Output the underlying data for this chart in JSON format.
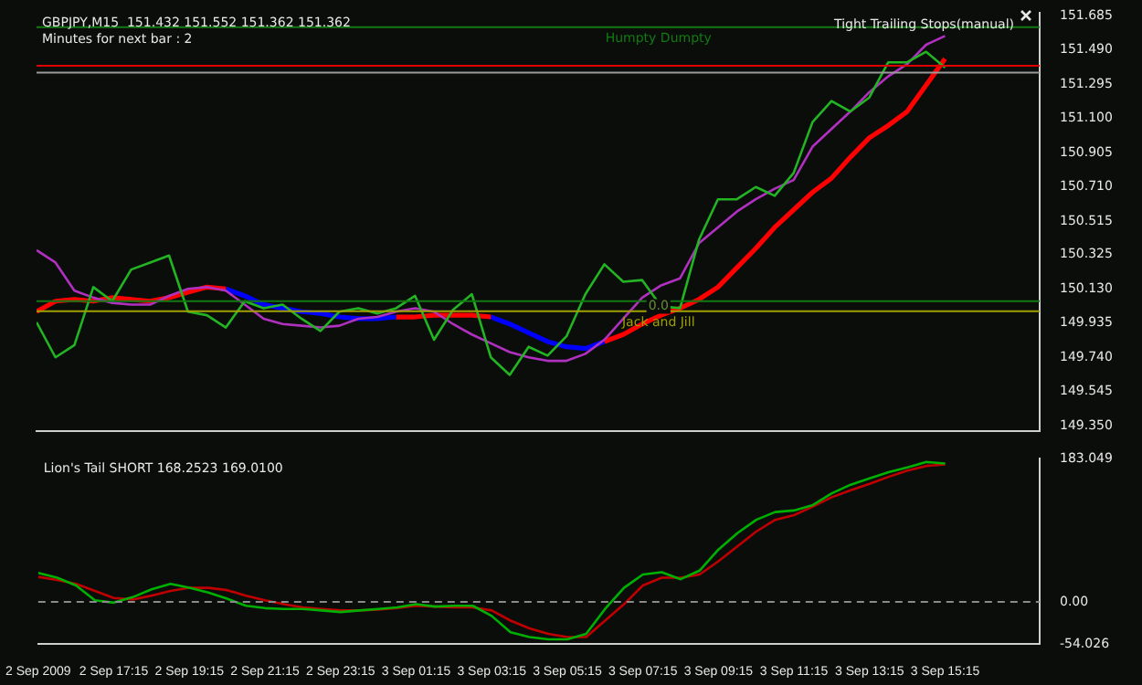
{
  "chart_data": [
    {
      "type": "line",
      "title": "GBPJPY,M15  151.432 151.552 151.362 151.362",
      "annotations": [
        "Minutes for next bar : 2",
        "Tight Trailing Stops(manual)",
        {
          "text": "0.0",
          "y": 150.03
        }
      ],
      "categories": [
        null,
        null,
        null,
        null,
        null,
        null,
        null,
        null,
        null,
        null,
        null,
        null,
        null,
        null,
        null,
        null,
        null,
        null,
        null,
        null,
        null,
        null,
        null,
        null,
        null,
        null,
        null,
        null,
        null,
        null,
        null,
        null,
        null,
        null,
        null,
        null,
        null,
        null,
        null,
        null,
        null,
        null,
        null,
        null,
        null,
        null,
        null,
        null,
        null
      ],
      "series": [
        {
          "color": "#22b422",
          "values": [
            149.94,
            149.74,
            149.81,
            150.14,
            150.06,
            150.24,
            150.28,
            150.32,
            150.0,
            149.98,
            149.91,
            150.06,
            150.02,
            150.04,
            149.96,
            149.89,
            150.0,
            150.02,
            149.99,
            150.02,
            150.09,
            149.84,
            150.01,
            150.1,
            149.74,
            149.64,
            149.8,
            149.75,
            149.86,
            150.1,
            150.27,
            150.17,
            150.18,
            150.03,
            150.02,
            150.41,
            150.64,
            150.64,
            150.71,
            150.66,
            150.79,
            151.08,
            151.2,
            151.14,
            151.22,
            151.42,
            151.42,
            151.48,
            151.39
          ]
        },
        {
          "color": "#b030c0",
          "values": [
            150.35,
            150.28,
            150.12,
            150.08,
            150.05,
            150.04,
            150.04,
            150.09,
            150.13,
            150.14,
            150.12,
            150.04,
            149.96,
            149.93,
            149.92,
            149.91,
            149.92,
            149.96,
            149.97,
            150.0,
            150.02,
            150.0,
            149.93,
            149.87,
            149.82,
            149.77,
            149.74,
            149.72,
            149.72,
            149.76,
            149.84,
            149.96,
            150.08,
            150.15,
            150.19,
            150.39,
            150.48,
            150.57,
            150.64,
            150.7,
            150.75,
            150.94,
            151.04,
            151.14,
            151.25,
            151.34,
            151.41,
            151.52,
            151.57
          ]
        },
        {
          "color": "#ff0000",
          "values": [
            150.0,
            150.06,
            150.07,
            150.06,
            150.08,
            150.07,
            150.06,
            150.08,
            150.11,
            150.14,
            150.13,
            null,
            null,
            null,
            null,
            null,
            null,
            null,
            null,
            149.97,
            149.97,
            149.98,
            149.98,
            149.98,
            149.97,
            null,
            null,
            null,
            null,
            null,
            149.83,
            149.87,
            149.93,
            149.98,
            150.02,
            150.07,
            150.14,
            150.25,
            150.36,
            150.48,
            150.58,
            150.68,
            150.76,
            150.88,
            150.99,
            151.06,
            151.14,
            151.29,
            151.44
          ]
        },
        {
          "color": "#0000ff",
          "values": [
            null,
            null,
            null,
            null,
            null,
            null,
            null,
            null,
            null,
            null,
            150.13,
            150.09,
            150.04,
            150.02,
            150.0,
            149.99,
            149.97,
            149.96,
            149.96,
            149.97,
            null,
            null,
            null,
            null,
            149.97,
            149.93,
            149.88,
            149.83,
            149.8,
            149.79,
            149.83,
            null,
            null,
            null,
            null,
            null,
            null,
            null,
            null,
            null,
            null,
            null,
            null,
            null,
            null,
            null,
            null,
            null,
            null
          ]
        }
      ],
      "ylim": [
        149.32,
        151.7
      ],
      "yticks": [
        151.685,
        {
          "value": 151.49,
          "label": "151.490"
        },
        151.295,
        {
          "value": 151.1,
          "label": "151.100"
        },
        150.905,
        {
          "value": 150.71,
          "label": "150.710"
        },
        150.515,
        150.325,
        {
          "value": 150.13,
          "label": "150.130"
        },
        149.935,
        {
          "value": 149.74,
          "label": "149.740"
        },
        149.545,
        {
          "value": 149.35,
          "label": "149.350"
        }
      ],
      "ref_lines": [
        {
          "axis": "y",
          "value": 151.62,
          "label": "Humpty Dumpty",
          "color": "#137a13"
        },
        {
          "axis": "y",
          "value": 151.4,
          "color": "#e00000"
        },
        {
          "axis": "y",
          "value": 151.362,
          "color": "#9a9a9a"
        },
        {
          "axis": "y",
          "value": 150.06,
          "color": "#137a13"
        },
        {
          "axis": "y",
          "value": 150.003,
          "label": "Jack and Jill",
          "color": "#a0a000"
        }
      ],
      "tick_labels": "y",
      "grid": false,
      "legend": false,
      "marker": "none",
      "line_style": "solid"
    },
    {
      "type": "line",
      "title": "Lion's Tail SHORT 168.2523 169.0100",
      "categories": [
        "2 Sep 2009",
        null,
        null,
        null,
        "2 Sep 17:15",
        null,
        null,
        null,
        "2 Sep 19:15",
        null,
        null,
        null,
        "2 Sep 21:15",
        null,
        null,
        null,
        "2 Sep 23:15",
        null,
        null,
        null,
        "3 Sep 01:15",
        null,
        null,
        null,
        "3 Sep 03:15",
        null,
        null,
        null,
        "3 Sep 05:15",
        null,
        null,
        null,
        "3 Sep 07:15",
        null,
        null,
        null,
        "3 Sep 09:15",
        null,
        null,
        null,
        "3 Sep 11:15",
        null,
        null,
        null,
        "3 Sep 13:15",
        null,
        null,
        null,
        "3 Sep 15:15"
      ],
      "series": [
        {
          "color": "#00b000",
          "values": [
            37,
            31,
            21,
            2,
            -1,
            6,
            16,
            23,
            18,
            12,
            4,
            -5,
            -8,
            -9,
            -9,
            -11,
            -13,
            -11,
            -9,
            -7,
            -3,
            -6,
            -5,
            -5,
            -18,
            -39,
            -45,
            -48,
            -48,
            -41,
            -9,
            18,
            35,
            38,
            29,
            40,
            67,
            88,
            105,
            115,
            117,
            124,
            139,
            150,
            158,
            166,
            172,
            179,
            177
          ]
        },
        {
          "color": "#c00000",
          "values": [
            32,
            28,
            23,
            14,
            5,
            3,
            8,
            14,
            18,
            18,
            15,
            8,
            2,
            -3,
            -7,
            -9,
            -11,
            -11,
            -10,
            -8,
            -5,
            -6,
            -7,
            -7,
            -11,
            -24,
            -34,
            -41,
            -45,
            -45,
            -24,
            -3,
            21,
            31,
            31,
            35,
            52,
            71,
            90,
            105,
            111,
            122,
            134,
            143,
            151,
            160,
            168,
            174,
            176
          ]
        }
      ],
      "ylim": [
        -54.026,
        183.049
      ],
      "yticks": [
        183.049,
        {
          "value": 0,
          "label": "0.00"
        },
        -54.026
      ],
      "ref_lines": [
        {
          "axis": "y",
          "value": 0,
          "color": "#8a8a8a",
          "line_style": "dashed"
        }
      ],
      "grid": false,
      "legend": false,
      "marker": "none",
      "line_style": "solid"
    }
  ]
}
